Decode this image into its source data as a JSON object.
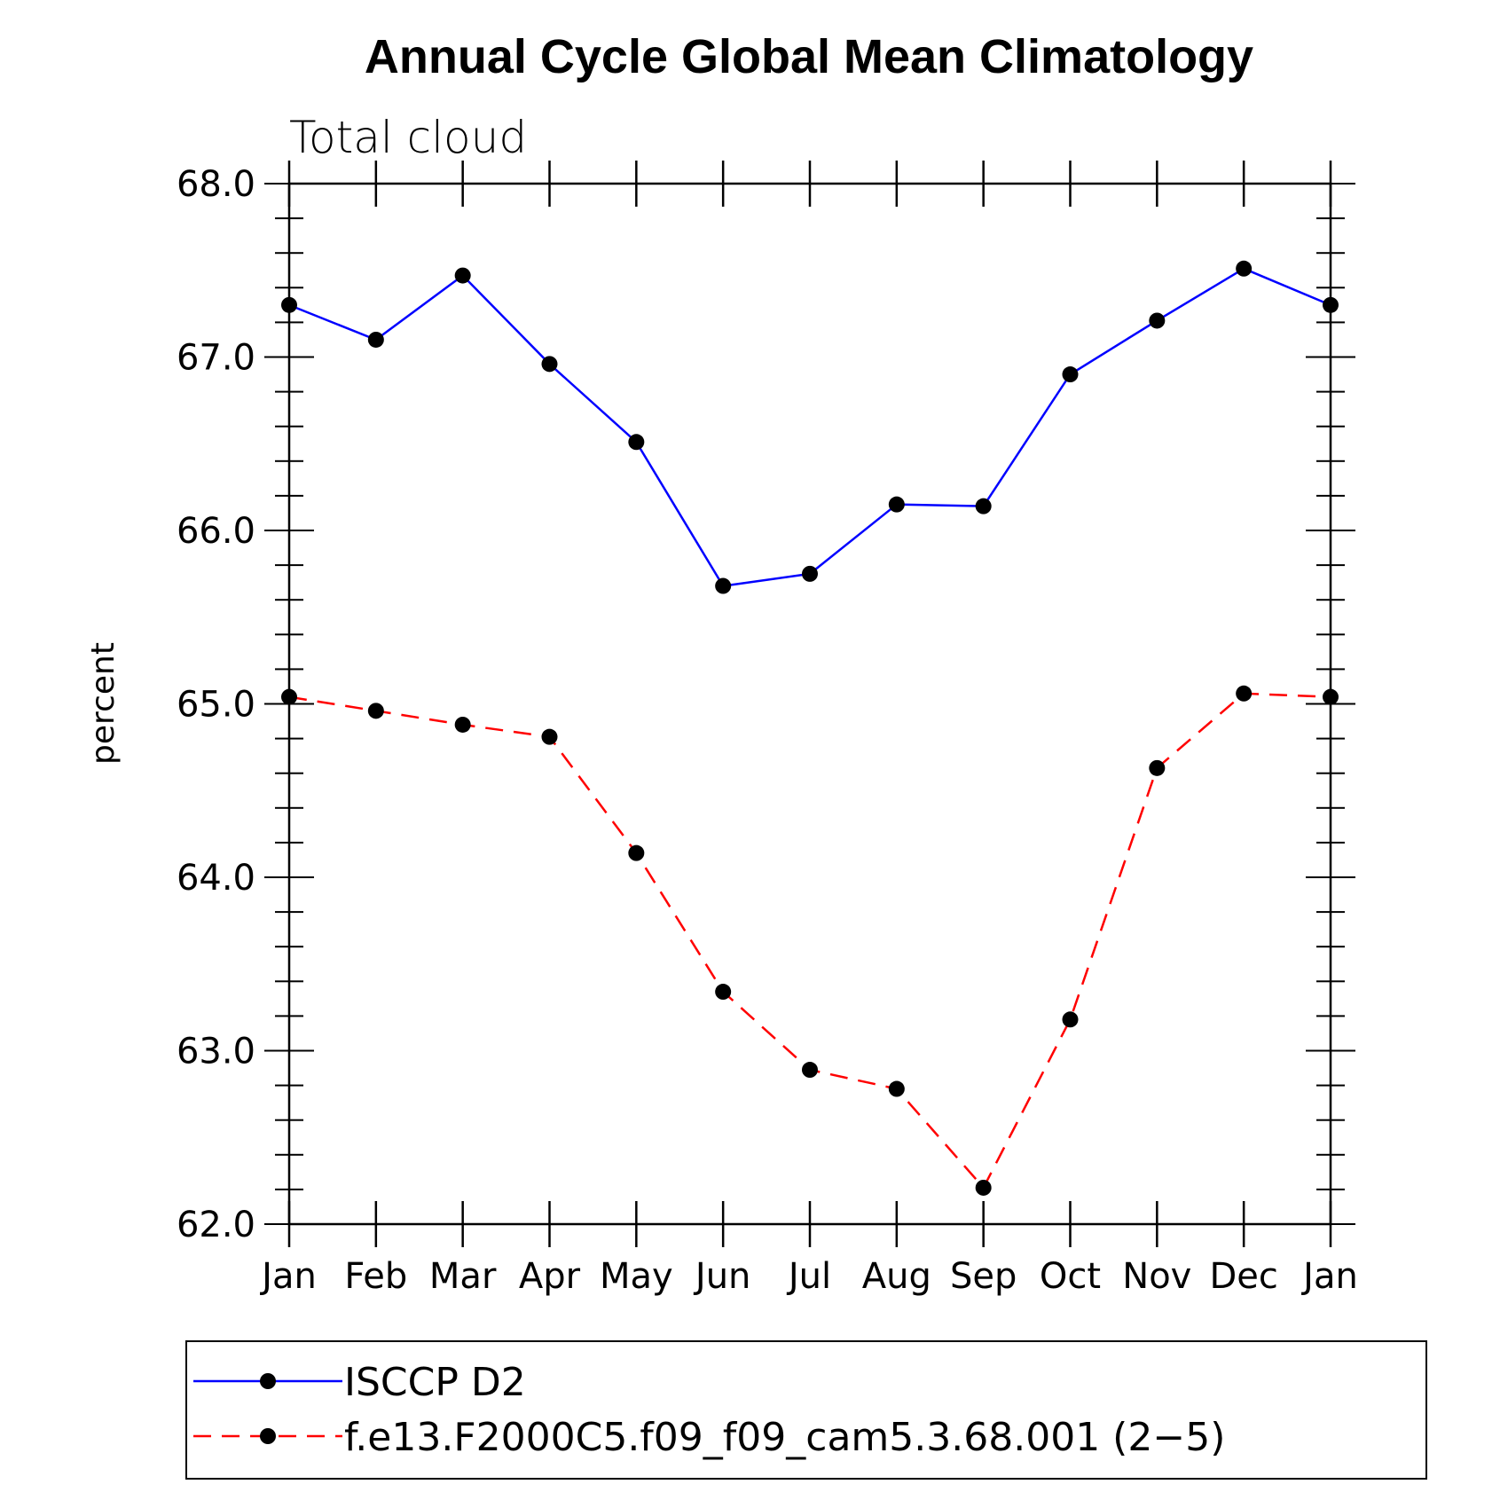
{
  "chart_data": {
    "type": "line",
    "title": "Annual Cycle Global Mean Climatology",
    "subtitle": "Total cloud",
    "xlabel": "",
    "ylabel": "percent",
    "categories": [
      "Jan",
      "Feb",
      "Mar",
      "Apr",
      "May",
      "Jun",
      "Jul",
      "Aug",
      "Sep",
      "Oct",
      "Nov",
      "Dec",
      "Jan"
    ],
    "ylim": [
      62.0,
      68.0
    ],
    "yticks": [
      "62.0",
      "63.0",
      "64.0",
      "65.0",
      "66.0",
      "67.0",
      "68.0"
    ],
    "grid": false,
    "legend_position": "bottom",
    "series": [
      {
        "name": "ISCCP D2",
        "color": "#0000ff",
        "dash": "solid",
        "marker": "filled-circle",
        "values": [
          67.3,
          67.1,
          67.47,
          66.96,
          66.51,
          65.68,
          65.75,
          66.15,
          66.14,
          66.9,
          67.21,
          67.51,
          67.3
        ]
      },
      {
        "name": "f.e13.F2000C5.f09_f09_cam5.3.68.001 (2−5)",
        "color": "#ff0000",
        "dash": "dashed",
        "marker": "filled-circle",
        "values": [
          65.04,
          64.96,
          64.88,
          64.81,
          64.14,
          63.34,
          62.89,
          62.78,
          62.21,
          63.18,
          64.63,
          65.06,
          65.04
        ]
      }
    ]
  }
}
